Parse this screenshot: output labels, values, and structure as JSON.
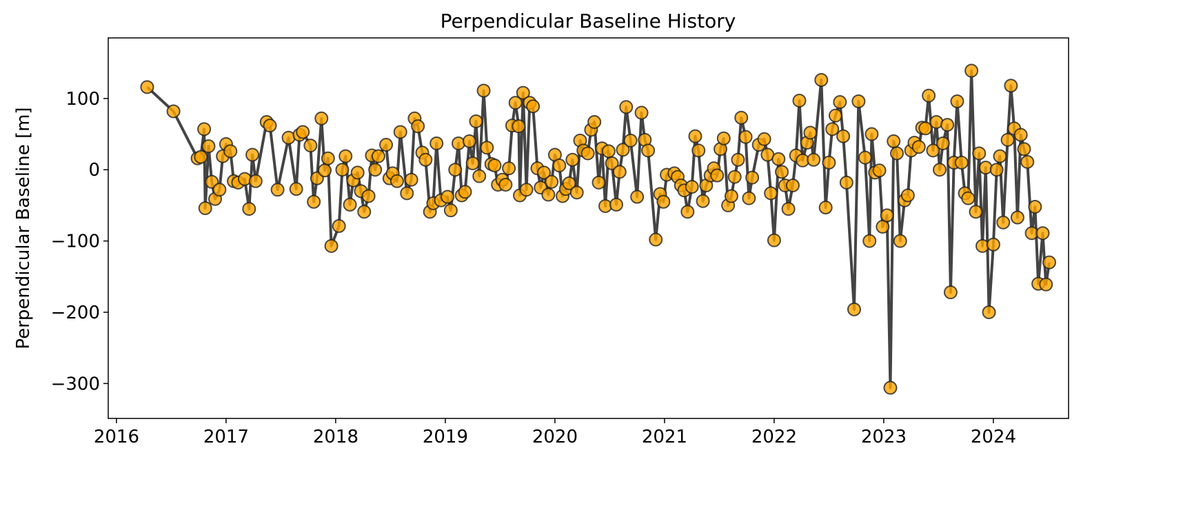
{
  "chart_data": {
    "type": "line",
    "title": "Perpendicular Baseline History",
    "y_label": "Perpendicular Baseline [m]",
    "x": [
      2016.28,
      2016.52,
      2016.74,
      2016.77,
      2016.8,
      2016.81,
      2016.84,
      2016.87,
      2016.9,
      2016.94,
      2016.97,
      2017.0,
      2017.04,
      2017.07,
      2017.11,
      2017.17,
      2017.21,
      2017.24,
      2017.27,
      2017.37,
      2017.4,
      2017.47,
      2017.57,
      2017.64,
      2017.67,
      2017.7,
      2017.77,
      2017.8,
      2017.83,
      2017.87,
      2017.9,
      2017.93,
      2017.96,
      2018.03,
      2018.06,
      2018.09,
      2018.13,
      2018.16,
      2018.2,
      2018.23,
      2018.26,
      2018.3,
      2018.33,
      2018.36,
      2018.39,
      2018.46,
      2018.49,
      2018.52,
      2018.56,
      2018.59,
      2018.65,
      2018.69,
      2018.72,
      2018.75,
      2018.79,
      2018.82,
      2018.86,
      2018.89,
      2018.92,
      2018.96,
      2019.02,
      2019.05,
      2019.09,
      2019.12,
      2019.15,
      2019.18,
      2019.22,
      2019.25,
      2019.28,
      2019.31,
      2019.35,
      2019.38,
      2019.42,
      2019.45,
      2019.48,
      2019.52,
      2019.55,
      2019.58,
      2019.61,
      2019.64,
      2019.67,
      2019.68,
      2019.71,
      2019.74,
      2019.77,
      2019.8,
      2019.84,
      2019.87,
      2019.9,
      2019.94,
      2019.97,
      2020.0,
      2020.04,
      2020.07,
      2020.1,
      2020.13,
      2020.16,
      2020.2,
      2020.23,
      2020.26,
      2020.3,
      2020.33,
      2020.36,
      2020.4,
      2020.43,
      2020.46,
      2020.49,
      2020.52,
      2020.56,
      2020.59,
      2020.62,
      2020.65,
      2020.69,
      2020.75,
      2020.79,
      2020.82,
      2020.85,
      2020.92,
      2020.96,
      2020.99,
      2021.02,
      2021.09,
      2021.12,
      2021.15,
      2021.18,
      2021.21,
      2021.25,
      2021.28,
      2021.31,
      2021.35,
      2021.38,
      2021.42,
      2021.45,
      2021.48,
      2021.51,
      2021.54,
      2021.58,
      2021.61,
      2021.64,
      2021.67,
      2021.7,
      2021.74,
      2021.77,
      2021.8,
      2021.86,
      2021.91,
      2021.94,
      2021.97,
      2022.0,
      2022.04,
      2022.07,
      2022.1,
      2022.13,
      2022.17,
      2022.2,
      2022.23,
      2022.26,
      2022.3,
      2022.33,
      2022.36,
      2022.43,
      2022.47,
      2022.5,
      2022.53,
      2022.56,
      2022.6,
      2022.63,
      2022.66,
      2022.73,
      2022.77,
      2022.83,
      2022.87,
      2022.89,
      2022.92,
      2022.96,
      2022.99,
      2023.03,
      2023.06,
      2023.09,
      2023.12,
      2023.15,
      2023.19,
      2023.22,
      2023.25,
      2023.28,
      2023.32,
      2023.35,
      2023.38,
      2023.41,
      2023.45,
      2023.48,
      2023.51,
      2023.54,
      2023.58,
      2023.61,
      2023.64,
      2023.67,
      2023.71,
      2023.74,
      2023.77,
      2023.8,
      2023.84,
      2023.87,
      2023.9,
      2023.93,
      2023.96,
      2024.0,
      2024.03,
      2024.06,
      2024.09,
      2024.13,
      2024.16,
      2024.19,
      2024.22,
      2024.25,
      2024.28,
      2024.31,
      2024.35,
      2024.38,
      2024.41,
      2024.45,
      2024.48,
      2024.51
    ],
    "values": [
      116,
      82,
      16,
      18,
      57,
      -54,
      33,
      -17,
      -41,
      -28,
      19,
      36,
      26,
      -16,
      -18,
      -13,
      -55,
      21,
      -16,
      67,
      62,
      -28,
      45,
      -27,
      49,
      53,
      34,
      -45,
      -12,
      72,
      -1,
      16,
      -107,
      -79,
      0,
      19,
      -49,
      -15,
      -4,
      -30,
      -59,
      -37,
      20,
      0,
      19,
      35,
      -12,
      -5,
      -16,
      53,
      -33,
      -14,
      72,
      61,
      24,
      14,
      -59,
      -47,
      37,
      -43,
      -38,
      -57,
      0,
      37,
      -36,
      -31,
      40,
      9,
      68,
      -9,
      111,
      31,
      8,
      6,
      -21,
      -14,
      -21,
      2,
      62,
      94,
      61,
      -36,
      108,
      -28,
      94,
      89,
      2,
      -25,
      -4,
      -35,
      -17,
      21,
      6,
      -37,
      -27,
      -19,
      14,
      -32,
      41,
      27,
      23,
      56,
      67,
      -18,
      30,
      -51,
      26,
      9,
      -49,
      -3,
      28,
      88,
      41,
      -38,
      80,
      42,
      27,
      -98,
      -34,
      -45,
      -7,
      -5,
      -10,
      -22,
      -29,
      -59,
      -24,
      47,
      27,
      -44,
      -22,
      -8,
      2,
      -8,
      29,
      44,
      -50,
      -37,
      -10,
      14,
      73,
      46,
      -40,
      -11,
      35,
      43,
      21,
      -33,
      -99,
      15,
      -3,
      -22,
      -55,
      -22,
      20,
      97,
      13,
      38,
      52,
      14,
      126,
      -53,
      10,
      57,
      76,
      95,
      47,
      -18,
      -196,
      96,
      17,
      -100,
      50,
      -4,
      -1,
      -80,
      -64,
      -306,
      40,
      23,
      -100,
      -43,
      -36,
      27,
      38,
      32,
      59,
      58,
      104,
      27,
      67,
      0,
      37,
      63,
      -172,
      10,
      96,
      10,
      -33,
      -40,
      139,
      -59,
      23,
      -107,
      3,
      -200,
      -105,
      0,
      19,
      -74,
      42,
      118,
      58,
      -67,
      49,
      29,
      11,
      -89,
      -52,
      -160,
      -89,
      -161,
      -130
    ],
    "color": "#ffa500",
    "line_color": "#444444",
    "xlim": [
      2015.925,
      2024.686
    ],
    "xticks": [
      2016,
      2017,
      2018,
      2019,
      2020,
      2021,
      2022,
      2023,
      2024
    ],
    "ylim": [
      -349,
      185
    ],
    "yticks": [
      {
        "value": -300,
        "label": "−300"
      },
      {
        "value": -200,
        "label": "−200"
      },
      {
        "value": -100,
        "label": "−100"
      },
      0,
      100
    ],
    "grid": false
  }
}
